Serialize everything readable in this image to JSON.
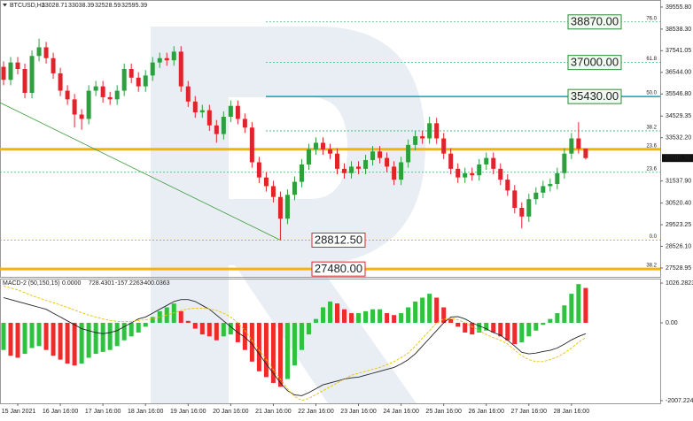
{
  "chart_data": [
    {
      "type": "candlestick",
      "title": "BTCUSD,H1",
      "header_values": [
        33028.71,
        33038.39,
        32528.59,
        32595.39
      ],
      "xlim": [
        -0.5,
        92.5
      ],
      "ylim": [
        27120,
        39880
      ],
      "yticks": [
        {
          "value": 39555.8,
          "label": "39555.80"
        },
        {
          "value": 38538.3,
          "label": "38538.30"
        },
        37541.05,
        {
          "value": 36544,
          "label": "36544.00"
        },
        {
          "value": 35546.8,
          "label": "35546.80"
        },
        34529.35,
        {
          "value": 33532.2,
          "label": "33532.20"
        },
        {
          "value": 31537.9,
          "label": "31537.90"
        },
        {
          "value": 30520.4,
          "label": "30520.40"
        },
        29523.25,
        {
          "value": 28526.1,
          "label": "28526.10"
        },
        27528.95
      ],
      "current_price": 32595.39,
      "up_color": "#2e9e3e",
      "down_color": "#e0242b",
      "open": [
        36800,
        36200,
        37000,
        36700,
        35600,
        37300,
        37700,
        37200,
        36500,
        35700,
        35300,
        34600,
        34400,
        35700,
        35900,
        35400,
        35300,
        35700,
        36700,
        36300,
        35900,
        36400,
        37000,
        37200,
        37100,
        37500,
        35900,
        35200,
        34700,
        34800,
        34100,
        33700,
        34500,
        35000,
        34400,
        34000,
        32400,
        31700,
        31300,
        30800,
        29800,
        30900,
        31500,
        32300,
        33000,
        33300,
        33000,
        32800,
        32100,
        31900,
        32200,
        32100,
        32500,
        32900,
        32600,
        32200,
        31600,
        32400,
        33200,
        33600,
        33500,
        34200,
        33500,
        32800,
        32100,
        31700,
        31900,
        31800,
        32300,
        32600,
        32100,
        31600,
        31100,
        30300,
        29900,
        30700,
        31000,
        31300,
        31400,
        31900,
        32800,
        33500,
        33028.71
      ],
      "high": [
        37050,
        37250,
        37250,
        36950,
        37550,
        38100,
        37950,
        37450,
        36750,
        35950,
        35550,
        34850,
        35950,
        36150,
        36150,
        35650,
        35950,
        36950,
        36950,
        36550,
        36650,
        37250,
        37450,
        37450,
        37750,
        37750,
        36150,
        35450,
        35050,
        35050,
        34350,
        34750,
        35250,
        35250,
        34650,
        34250,
        32650,
        31950,
        31550,
        31050,
        31150,
        31750,
        32550,
        33250,
        33550,
        33550,
        33250,
        33050,
        32350,
        32450,
        32450,
        32750,
        33150,
        33150,
        32850,
        32450,
        32650,
        33450,
        33850,
        33850,
        34500,
        34450,
        33750,
        33050,
        32350,
        32150,
        32150,
        32550,
        32850,
        32850,
        32350,
        31850,
        31350,
        30550,
        30950,
        31250,
        31550,
        31650,
        32150,
        33050,
        33750,
        34250,
        33038.39
      ],
      "low": [
        35950,
        35950,
        36450,
        35350,
        35350,
        37050,
        36950,
        36250,
        35450,
        35050,
        34000,
        33900,
        34150,
        35450,
        35150,
        35050,
        35050,
        35450,
        36050,
        35650,
        35650,
        36150,
        36750,
        36850,
        36850,
        35650,
        34950,
        34450,
        34450,
        33850,
        33300,
        33450,
        34250,
        34150,
        33750,
        32150,
        31450,
        31050,
        30550,
        28812.5,
        29550,
        30650,
        31250,
        32050,
        32750,
        32750,
        32550,
        31850,
        31650,
        31650,
        31850,
        31850,
        32250,
        32350,
        31950,
        31350,
        31350,
        32150,
        32950,
        33250,
        33250,
        33250,
        32550,
        31850,
        31450,
        31450,
        31550,
        31550,
        32050,
        31850,
        31350,
        30850,
        30050,
        29350,
        29650,
        30450,
        30750,
        31050,
        31150,
        31650,
        32550,
        32800,
        32528.59
      ],
      "close": [
        36200,
        37000,
        36700,
        35600,
        37300,
        37700,
        37200,
        36500,
        35700,
        35300,
        34600,
        34400,
        35700,
        35900,
        35400,
        35300,
        35700,
        36700,
        36300,
        35900,
        36400,
        37000,
        37200,
        37100,
        37500,
        35900,
        35200,
        34700,
        34800,
        34100,
        33700,
        34500,
        35000,
        34400,
        34000,
        32400,
        31700,
        31300,
        30800,
        29800,
        30900,
        31500,
        32300,
        33000,
        33300,
        33000,
        32800,
        32100,
        31900,
        32200,
        32100,
        32500,
        32900,
        32600,
        32200,
        31600,
        32400,
        33200,
        33600,
        33500,
        34200,
        33500,
        32800,
        32100,
        31700,
        31900,
        31800,
        32300,
        32600,
        32100,
        31600,
        31100,
        30300,
        29900,
        30700,
        31000,
        31300,
        31400,
        31900,
        32800,
        33500,
        33028.71,
        32595.39
      ],
      "trendline": {
        "x": [
          -0.5,
          39
        ],
        "y": [
          35150,
          28812.5
        ],
        "color": "#3a9a3a"
      },
      "levels": [
        {
          "value": 38870,
          "label": "76.0",
          "color": "#3cb371"
        },
        {
          "value": 37000,
          "label": "61.8",
          "color": "#3cb371"
        },
        {
          "value": 35430,
          "label": "50.0",
          "color": "#1a9bb0"
        },
        {
          "value": 33850,
          "label": "38.2",
          "color": "#3cb371"
        },
        {
          "value": 33000,
          "label": "23.6",
          "color": "#f5b400"
        },
        {
          "value": 31940,
          "label": "23.6",
          "color": "#3cb371"
        },
        {
          "value": 28812.5,
          "label": "0.0",
          "color": "#b5a400"
        },
        {
          "value": 27480,
          "label": "38.2",
          "color": "#f5b400"
        }
      ],
      "price_boxes": [
        {
          "value": 38870,
          "label": "38870.00",
          "color": "#2e8b3a"
        },
        {
          "value": 37000,
          "label": "37000.00",
          "color": "#2e8b3a"
        },
        {
          "value": 35430,
          "label": "35430.00",
          "color": "#2e8b3a"
        },
        {
          "value": 28812.5,
          "label": "28812.50",
          "color": "#e0242b"
        },
        {
          "value": 27480,
          "label": "27480.00",
          "color": "#e0242b"
        }
      ]
    },
    {
      "type": "macd",
      "title": "MACD-2 (50,150,15)",
      "header_values": [
        {
          "value": 0,
          "label": "0.0000"
        },
        728.4301,
        -157.2263,
        -400.0363
      ],
      "xlim": [
        -0.5,
        92.5
      ],
      "ylim": [
        -2076,
        1141
      ],
      "yticks": [
        1026.2823,
        {
          "value": 0,
          "label": "0.00"
        },
        -2007.2245
      ],
      "xticks": [
        {
          "value": 2,
          "label": "15 Jan 2021"
        },
        {
          "value": 8,
          "label": "16 Jan 16:00"
        },
        {
          "value": 14,
          "label": "17 Jan 16:00"
        },
        {
          "value": 20,
          "label": "18 Jan 16:00"
        },
        {
          "value": 26,
          "label": "19 Jan 16:00"
        },
        {
          "value": 32,
          "label": "20 Jan 16:00"
        },
        {
          "value": 38,
          "label": "21 Jan 16:00"
        },
        {
          "value": 44,
          "label": "22 Jan 16:00"
        },
        {
          "value": 50,
          "label": "23 Jan 16:00"
        },
        {
          "value": 56,
          "label": "24 Jan 16:00"
        },
        {
          "value": 62,
          "label": "25 Jan 16:00"
        },
        {
          "value": 68,
          "label": "26 Jan 16:00"
        },
        {
          "value": 74,
          "label": "27 Jan 16:00"
        },
        {
          "value": 80,
          "label": "28 Jan 16:00"
        }
      ],
      "up_color": "#2ec23e",
      "down_color": "#ee2a2a",
      "histogram": [
        -700,
        -850,
        -900,
        -800,
        -650,
        -600,
        -700,
        -850,
        -950,
        -1050,
        -1100,
        -1050,
        -900,
        -800,
        -750,
        -700,
        -600,
        -450,
        -350,
        -250,
        -100,
        150,
        300,
        400,
        500,
        300,
        50,
        -150,
        -300,
        -350,
        -450,
        -350,
        -300,
        -500,
        -700,
        -1000,
        -1250,
        -1400,
        -1550,
        -1650,
        -1450,
        -1100,
        -700,
        -300,
        100,
        400,
        550,
        500,
        350,
        250,
        250,
        300,
        350,
        350,
        250,
        200,
        250,
        400,
        550,
        650,
        750,
        650,
        400,
        100,
        -100,
        -250,
        -300,
        -250,
        -200,
        -250,
        -350,
        -450,
        -550,
        -500,
        -350,
        -200,
        -50,
        100,
        250,
        450,
        750,
        1000,
        900
      ],
      "series": [
        {
          "color": "#222222",
          "values": [
            650,
            600,
            550,
            500,
            450,
            400,
            350,
            250,
            150,
            50,
            -50,
            -150,
            -200,
            -250,
            -280,
            -250,
            -200,
            -100,
            0,
            100,
            150,
            250,
            350,
            450,
            550,
            600,
            600,
            550,
            450,
            350,
            200,
            50,
            -100,
            -250,
            -370,
            -550,
            -800,
            -1060,
            -1300,
            -1550,
            -1750,
            -1860,
            -1880,
            -1800,
            -1700,
            -1600,
            -1550,
            -1500,
            -1450,
            -1420,
            -1400,
            -1350,
            -1300,
            -1250,
            -1200,
            -1150,
            -1060,
            -950,
            -800,
            -600,
            -400,
            -200,
            0,
            150,
            160,
            100,
            0,
            -80,
            -150,
            -250,
            -320,
            -450,
            -600,
            -760,
            -800,
            -780,
            -740,
            -710,
            -650,
            -550,
            -440,
            -350,
            -280
          ]
        },
        {
          "color": "#e8c400",
          "values": [
            950,
            900,
            850,
            780,
            700,
            640,
            580,
            520,
            460,
            400,
            330,
            260,
            200,
            150,
            100,
            60,
            40,
            30,
            40,
            60,
            80,
            100,
            150,
            200,
            260,
            320,
            360,
            380,
            380,
            360,
            320,
            250,
            150,
            0,
            -200,
            -450,
            -700,
            -950,
            -1200,
            -1450,
            -1700,
            -1900,
            -2000,
            -1950,
            -1850,
            -1750,
            -1650,
            -1550,
            -1450,
            -1350,
            -1300,
            -1250,
            -1200,
            -1150,
            -1080,
            -1000,
            -900,
            -780,
            -600,
            -400,
            -200,
            0,
            100,
            120,
            80,
            0,
            -100,
            -200,
            -300,
            -380,
            -450,
            -550,
            -700,
            -850,
            -950,
            -1000,
            -1000,
            -950,
            -880,
            -780,
            -650,
            -500,
            -380
          ]
        }
      ]
    }
  ]
}
